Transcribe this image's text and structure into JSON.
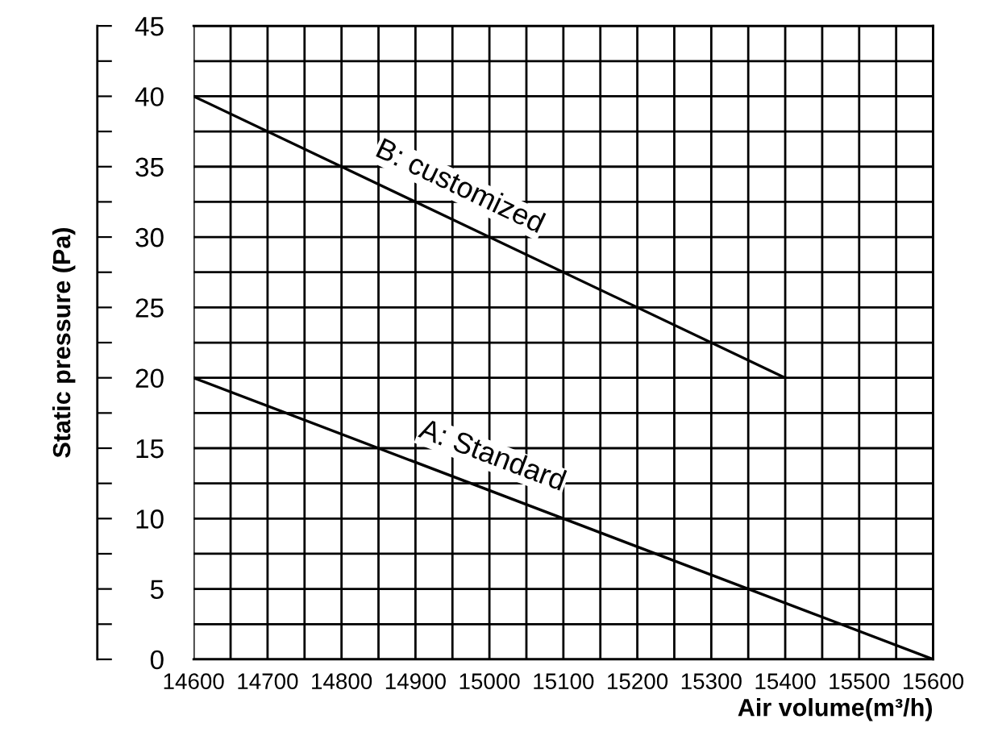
{
  "chart_data": {
    "type": "line",
    "xlabel": "Air volume(m³/h)",
    "ylabel": "Static pressure (Pa)",
    "series": [
      {
        "name": "B: customized",
        "color": "#000000",
        "x": [
          14600,
          15400
        ],
        "values": [
          40,
          20
        ]
      },
      {
        "name": "A: Standard",
        "color": "#000000",
        "x": [
          14600,
          15600
        ],
        "values": [
          20,
          0
        ]
      }
    ],
    "xlim": [
      14600,
      15600
    ],
    "ylim": [
      0,
      45
    ],
    "xticks": [
      14600,
      {
        "value": 14650,
        "label": null
      },
      14700,
      {
        "value": 14750,
        "label": null
      },
      14800,
      {
        "value": 14850,
        "label": null
      },
      14900,
      {
        "value": 14950,
        "label": null
      },
      15000,
      {
        "value": 15050,
        "label": null
      },
      15100,
      {
        "value": 15150,
        "label": null
      },
      15200,
      {
        "value": 15250,
        "label": null
      },
      15300,
      {
        "value": 15350,
        "label": null
      },
      15400,
      {
        "value": 15450,
        "label": null
      },
      15500,
      {
        "value": 15550,
        "label": null
      },
      15600
    ],
    "yticks": [
      0,
      {
        "value": 2.5,
        "label": null
      },
      5,
      {
        "value": 7.5,
        "label": null
      },
      10,
      {
        "value": 12.5,
        "label": null
      },
      15,
      {
        "value": 17.5,
        "label": null
      },
      20,
      {
        "value": 22.5,
        "label": null
      },
      25,
      {
        "value": 27.5,
        "label": null
      },
      30,
      {
        "value": 32.5,
        "label": null
      },
      35,
      {
        "value": 37.5,
        "label": null
      },
      40,
      {
        "value": 42.5,
        "label": null
      },
      45
    ],
    "grid": true,
    "line_style": "solid",
    "marker": "none"
  }
}
